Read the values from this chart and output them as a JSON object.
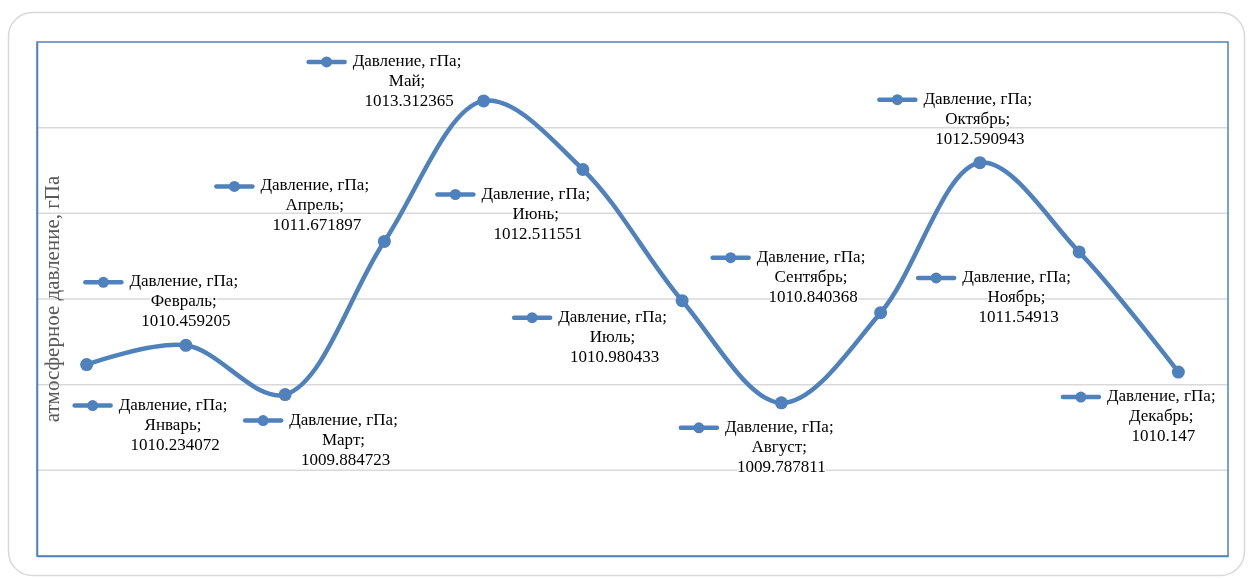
{
  "chart_data": {
    "type": "line",
    "ylabel": "атмосферное давление, гПа",
    "categories": [
      null,
      null,
      null,
      null,
      null,
      null,
      null,
      null,
      null,
      null,
      null,
      null
    ],
    "values": [
      1010.234072,
      1010.459205,
      1009.884723,
      1011.671897,
      1013.312365,
      1012.511551,
      1010.980433,
      1009.787811,
      1010.840368,
      1012.590943,
      1011.54913,
      1010.147
    ],
    "color": "#4f81bd",
    "value_labels": [
      "Давление, гПа; Январь; 1010.234072",
      "Давление, гПа; Февраль; 1010.459205",
      "Давление, гПа; Март; 1009.884723",
      "Давление, гПа; Апрель; 1011.671897",
      "Давление, гПа; Май; 1013.312365",
      "Давление, гПа; Июнь; 1012.511551",
      "Давление, гПа; Июль; 1010.980433",
      "Давление, гПа; Август; 1009.787811",
      "Давление, гПа; Сентябрь; 1010.840368",
      "Давление, гПа; Октябрь; 1012.590943",
      "Давление, гПа; Ноябрь; 1011.54913",
      "Давление, гПа; Декабрь; 1010.147"
    ],
    "ylim": [
      1008,
      1014
    ],
    "yticks": [
      1009,
      1010,
      1011,
      1012,
      1013
    ],
    "grid": "y",
    "tick_labels": false,
    "marker": "circle"
  }
}
